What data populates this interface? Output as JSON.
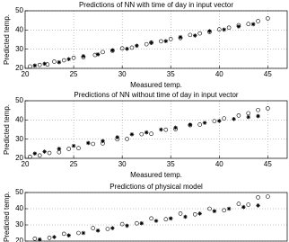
{
  "chart_data": [
    {
      "type": "scatter",
      "title": "Predictions of NN with time of day in input vector",
      "xlabel": "Measured temp.",
      "ylabel": "Predicted temp.",
      "xlim": [
        20,
        47
      ],
      "ylim": [
        20,
        50
      ],
      "xticks": [
        20,
        25,
        30,
        35,
        40,
        45
      ],
      "yticks": [
        20,
        30,
        40,
        50
      ],
      "grid": true,
      "series": [
        {
          "marker": "o",
          "color": "#000000",
          "x": [
            20.5,
            21.5,
            22.3,
            23,
            24,
            25,
            26,
            27.2,
            28,
            29,
            30,
            31,
            32.5,
            33,
            34,
            35,
            36,
            37,
            38,
            39,
            40,
            41,
            42,
            43,
            44,
            45
          ],
          "values": [
            21,
            21.8,
            22,
            23.5,
            24.2,
            25.5,
            25.8,
            27,
            28.5,
            29.2,
            30.4,
            30.8,
            32.6,
            33.5,
            34.1,
            35.3,
            35.8,
            37.4,
            38.2,
            39,
            40.3,
            41.2,
            42.5,
            43.1,
            44.6,
            46
          ]
        },
        {
          "marker": "*",
          "color": "#000000",
          "x": [
            21,
            22,
            23.5,
            24.5,
            26,
            27.5,
            29,
            30.5,
            31.5,
            33,
            34.5,
            36,
            37.5,
            39,
            40.5,
            42,
            43.5
          ],
          "values": [
            21.5,
            22.4,
            23.2,
            24.8,
            26.4,
            27.3,
            29.4,
            30.2,
            31.8,
            33.3,
            34.2,
            36.3,
            37.1,
            39.4,
            40.2,
            41.8,
            43
          ]
        }
      ]
    },
    {
      "type": "scatter",
      "title": "Predictions of NN without time of day in input vector",
      "xlabel": "Measured temp.",
      "ylabel": "Predicted temp.",
      "xlim": [
        20,
        47
      ],
      "ylim": [
        20,
        50
      ],
      "xticks": [
        20,
        25,
        30,
        35,
        40,
        45
      ],
      "yticks": [
        20,
        30,
        40,
        50
      ],
      "grid": true,
      "series": [
        {
          "marker": "o",
          "color": "#000000",
          "x": [
            20.5,
            21.5,
            22.5,
            23.5,
            24.5,
            25.5,
            27,
            28,
            29.5,
            30.5,
            32,
            33,
            34.5,
            35.5,
            37,
            38,
            39.5,
            40.5,
            42,
            43,
            44,
            45
          ],
          "values": [
            20.8,
            21.5,
            22.8,
            23.2,
            24.9,
            25.3,
            27.5,
            27.8,
            29.9,
            30.1,
            32.6,
            32.8,
            34.9,
            35.2,
            37.3,
            37.6,
            39.4,
            40.8,
            42.3,
            43.5,
            45.2,
            46
          ]
        },
        {
          "marker": "*",
          "color": "#000000",
          "x": [
            21,
            22,
            23.5,
            25,
            26.5,
            28,
            29.5,
            31,
            32.5,
            34,
            35.5,
            37,
            38.5,
            40,
            41.5,
            43,
            44
          ],
          "values": [
            22.5,
            23.5,
            25,
            26.5,
            28,
            29,
            31,
            32.5,
            33.5,
            35,
            36,
            37.5,
            38.5,
            39.5,
            40.5,
            41.5,
            42
          ]
        }
      ]
    },
    {
      "type": "scatter",
      "title": "Predictions of physical model",
      "ylabel": "Predicted temp.",
      "xlim": [
        20,
        47
      ],
      "ylim": [
        20,
        50
      ],
      "yticks": [
        20,
        30,
        40,
        50
      ],
      "grid": true,
      "series": [
        {
          "marker": "o",
          "color": "#000000",
          "x": [
            21,
            22.5,
            24,
            25.5,
            27,
            28.5,
            30,
            31.5,
            33,
            34.5,
            36,
            37.5,
            39,
            40.5,
            42,
            43,
            44,
            45
          ],
          "values": [
            21.5,
            22,
            24.5,
            25,
            28,
            27.5,
            30.5,
            31,
            34,
            33.5,
            37,
            36.5,
            40,
            39,
            43,
            42.5,
            47,
            47.5
          ]
        },
        {
          "marker": "*",
          "color": "#000000",
          "x": [
            21.5,
            23,
            24.5,
            26,
            27.5,
            29,
            30.5,
            32,
            33.5,
            35,
            36.5,
            38,
            39.5,
            41,
            42.5,
            44
          ],
          "values": [
            21,
            22.5,
            23.5,
            25,
            26.5,
            28,
            29.5,
            31,
            32.5,
            34,
            35,
            37,
            38.5,
            40,
            41,
            42
          ]
        }
      ]
    }
  ]
}
